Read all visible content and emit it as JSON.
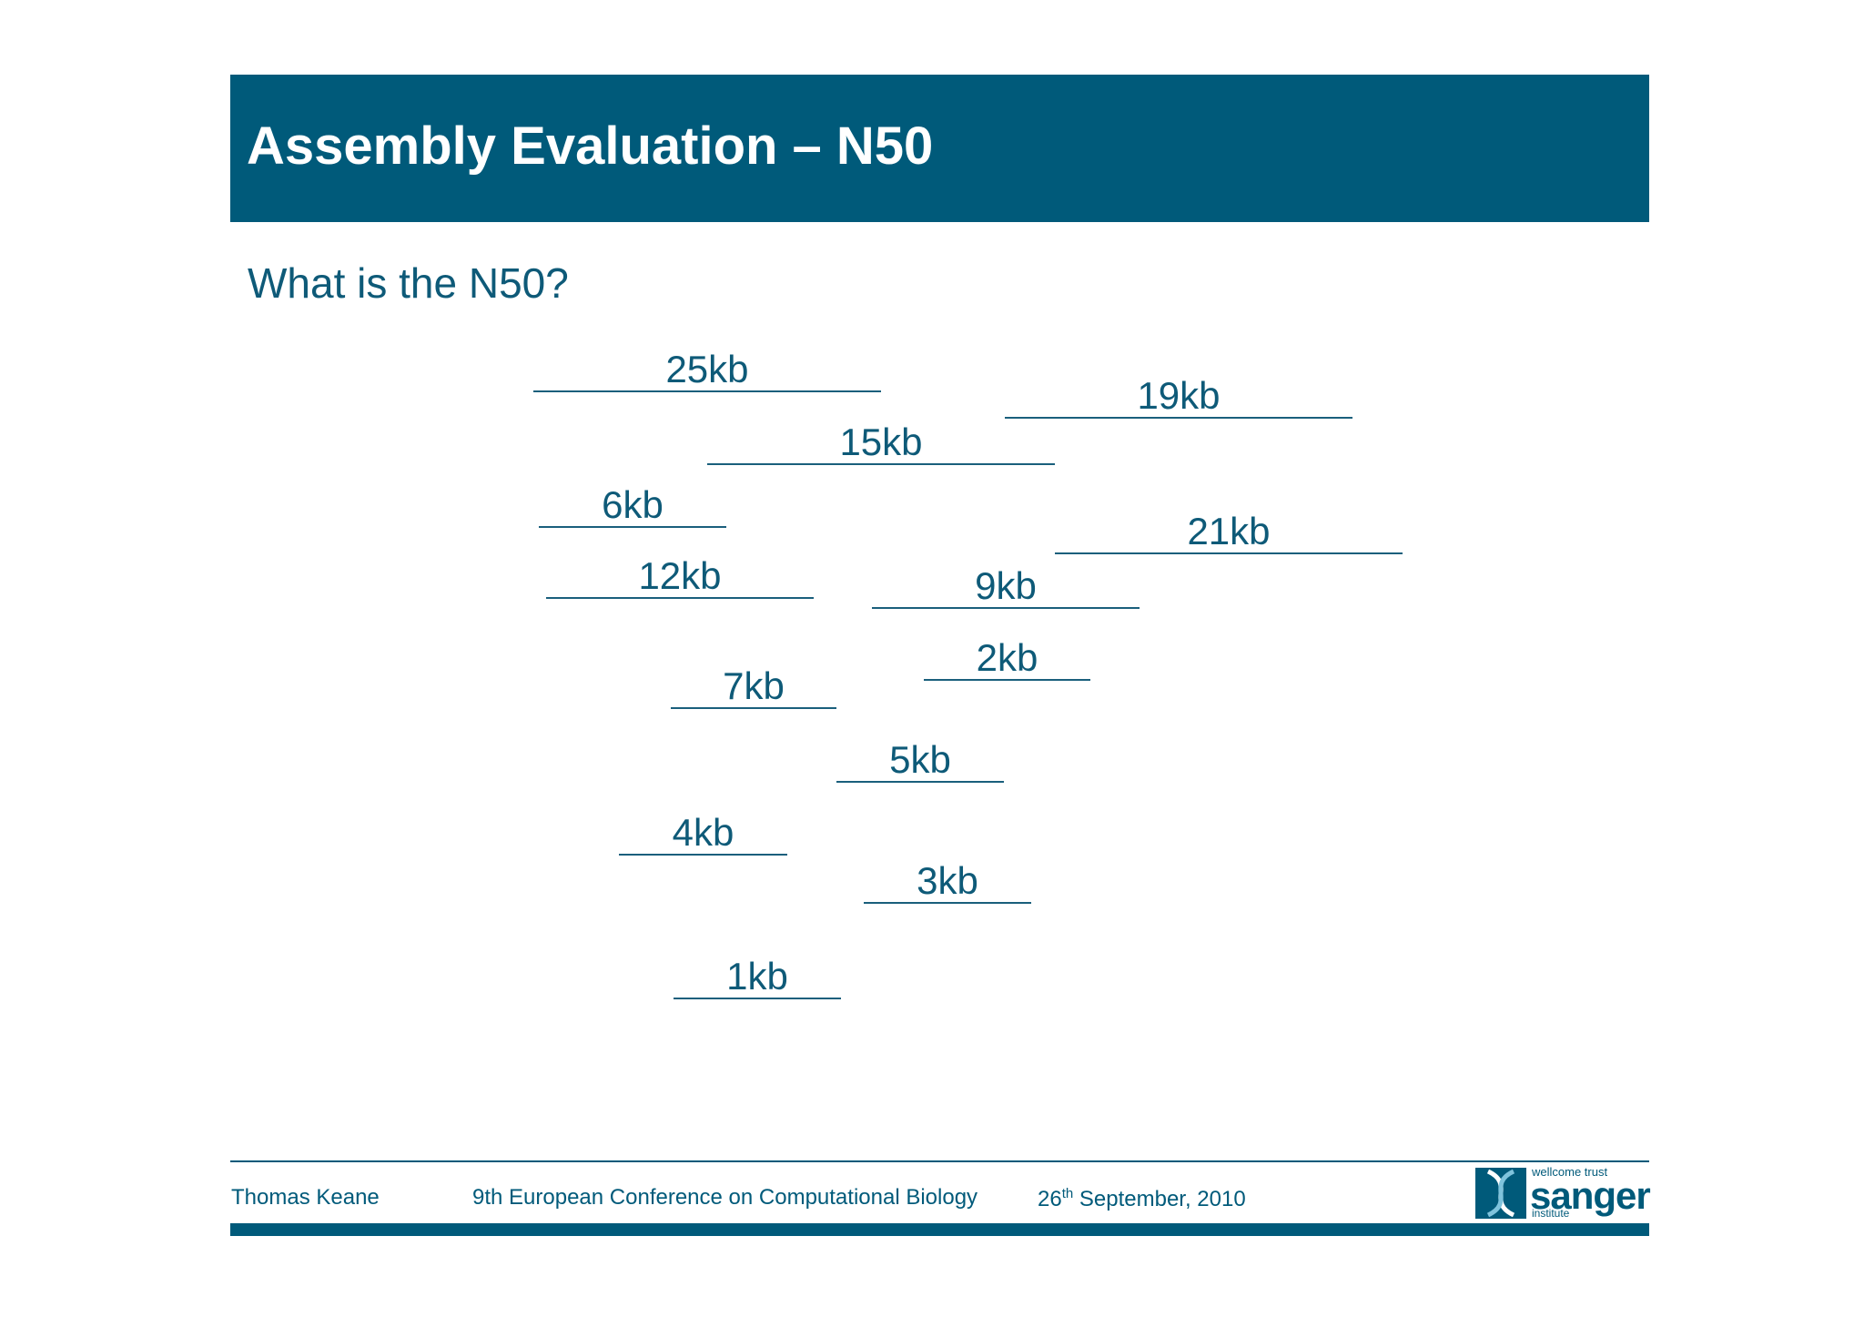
{
  "slide": {
    "title": "Assembly Evaluation – N50",
    "question": "What is the N50?"
  },
  "contigs": [
    "25kb",
    "19kb",
    "15kb",
    "6kb",
    "21kb",
    "12kb",
    "9kb",
    "2kb",
    "7kb",
    "5kb",
    "4kb",
    "3kb",
    "1kb"
  ],
  "footer": {
    "author": "Thomas Keane",
    "conference": "9th European Conference on Computational Biology",
    "date_day": "26",
    "date_suffix": "th",
    "date_rest": " September, 2010"
  },
  "logo": {
    "top": "wellcome trust",
    "main": "sanger",
    "bottom": "institute"
  },
  "colors": {
    "header": "#005a7a",
    "text": "#0e5a78"
  }
}
